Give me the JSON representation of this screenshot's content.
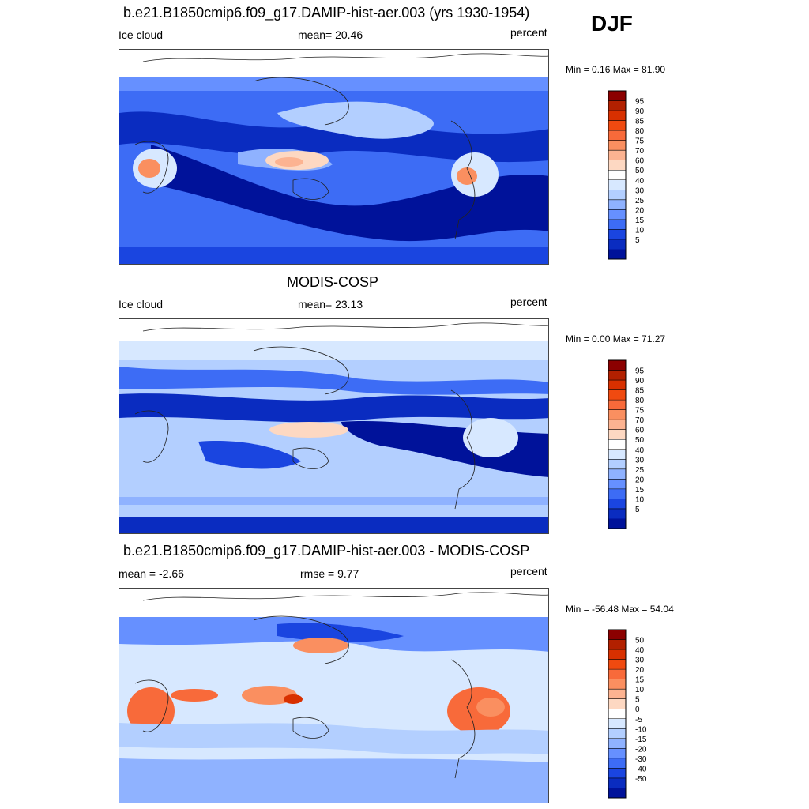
{
  "header": {
    "season": "DJF"
  },
  "panels": [
    {
      "title": "b.e21.B1850cmip6.f09_g17.DAMIP-hist-aer.003 (yrs 1930-1954)",
      "left_label": "Ice cloud",
      "center_label": "mean=  20.46",
      "right_label": "percent",
      "minmax": "Min =   0.16 Max =  81.90",
      "colorbar": {
        "levels": [
          "95",
          "90",
          "85",
          "80",
          "75",
          "70",
          "60",
          "50",
          "40",
          "30",
          "25",
          "20",
          "15",
          "10",
          "5"
        ],
        "colors": [
          "#8b0000",
          "#b22000",
          "#d83000",
          "#f04a10",
          "#f86a3a",
          "#fa8f60",
          "#fcb391",
          "#fdd8c2",
          "#ffffff",
          "#d7e8ff",
          "#b3cfff",
          "#8fb2ff",
          "#6690ff",
          "#3d6cf5",
          "#1a45e0",
          "#0a2cc0",
          "#00129a"
        ]
      }
    },
    {
      "title": "MODIS-COSP",
      "left_label": "Ice cloud",
      "center_label": "mean=  23.13",
      "right_label": "percent",
      "minmax": "Min =   0.00 Max =  71.27",
      "colorbar": {
        "levels": [
          "95",
          "90",
          "85",
          "80",
          "75",
          "70",
          "60",
          "50",
          "40",
          "30",
          "25",
          "20",
          "15",
          "10",
          "5"
        ],
        "colors": [
          "#8b0000",
          "#b22000",
          "#d83000",
          "#f04a10",
          "#f86a3a",
          "#fa8f60",
          "#fcb391",
          "#fdd8c2",
          "#ffffff",
          "#d7e8ff",
          "#b3cfff",
          "#8fb2ff",
          "#6690ff",
          "#3d6cf5",
          "#1a45e0",
          "#0a2cc0",
          "#00129a"
        ]
      }
    },
    {
      "title": "b.e21.B1850cmip6.f09_g17.DAMIP-hist-aer.003 - MODIS-COSP",
      "left_label": "mean =  -2.66",
      "center_label": "rmse =   9.77",
      "right_label": "percent",
      "minmax": "Min = -56.48 Max =  54.04",
      "colorbar": {
        "levels": [
          "50",
          "40",
          "30",
          "20",
          "15",
          "10",
          "5",
          "0",
          "-5",
          "-10",
          "-15",
          "-20",
          "-30",
          "-40",
          "-50"
        ],
        "colors": [
          "#8b0000",
          "#b22000",
          "#d83000",
          "#f04a10",
          "#f86a3a",
          "#fa8f60",
          "#fcb391",
          "#fdd8c2",
          "#ffffff",
          "#d7e8ff",
          "#b3cfff",
          "#8fb2ff",
          "#6690ff",
          "#3d6cf5",
          "#1a45e0",
          "#0a2cc0",
          "#00129a"
        ]
      }
    }
  ]
}
